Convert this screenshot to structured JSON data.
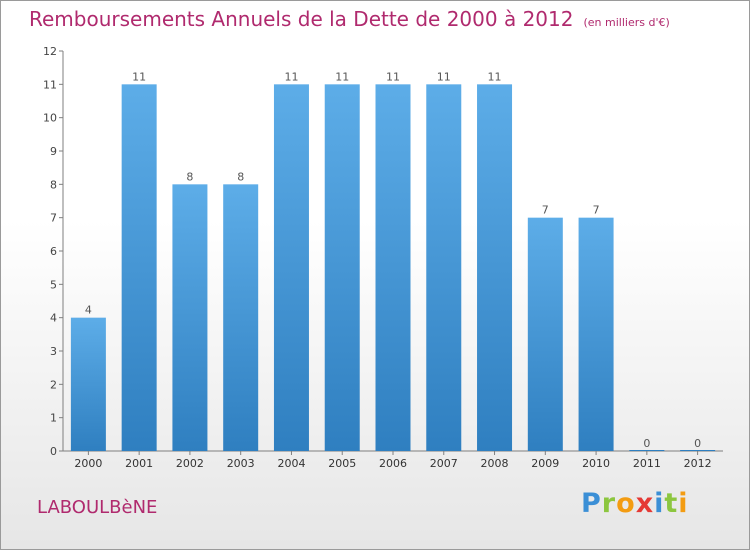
{
  "header": {
    "title": "Remboursements Annuels de la Dette de 2000 à 2012",
    "subtitle": "(en milliers d'€)"
  },
  "footer": {
    "commune": "LABOULBèNE",
    "logo_letters": [
      {
        "char": "P",
        "color": "#3b8fd6"
      },
      {
        "char": "r",
        "color": "#8cc63f"
      },
      {
        "char": "o",
        "color": "#f39c12"
      },
      {
        "char": "x",
        "color": "#e53935"
      },
      {
        "char": "i",
        "color": "#3b8fd6"
      },
      {
        "char": "t",
        "color": "#8cc63f"
      },
      {
        "char": "i",
        "color": "#f39c12"
      }
    ]
  },
  "colors": {
    "bar_top": "#5dade8",
    "bar_bottom": "#2f7fc0",
    "title": "#b02a6e"
  },
  "chart_data": {
    "type": "bar",
    "categories": [
      "2000",
      "2001",
      "2002",
      "2003",
      "2004",
      "2005",
      "2006",
      "2007",
      "2008",
      "2009",
      "2010",
      "2011",
      "2012"
    ],
    "values": [
      4,
      11,
      8,
      8,
      11,
      11,
      11,
      11,
      11,
      7,
      7,
      0,
      0
    ],
    "y_ticks": [
      0,
      1,
      2,
      3,
      4,
      5,
      6,
      7,
      8,
      9,
      10,
      11,
      12
    ],
    "ylim": [
      0,
      12
    ],
    "grid": false,
    "legend": "none"
  }
}
